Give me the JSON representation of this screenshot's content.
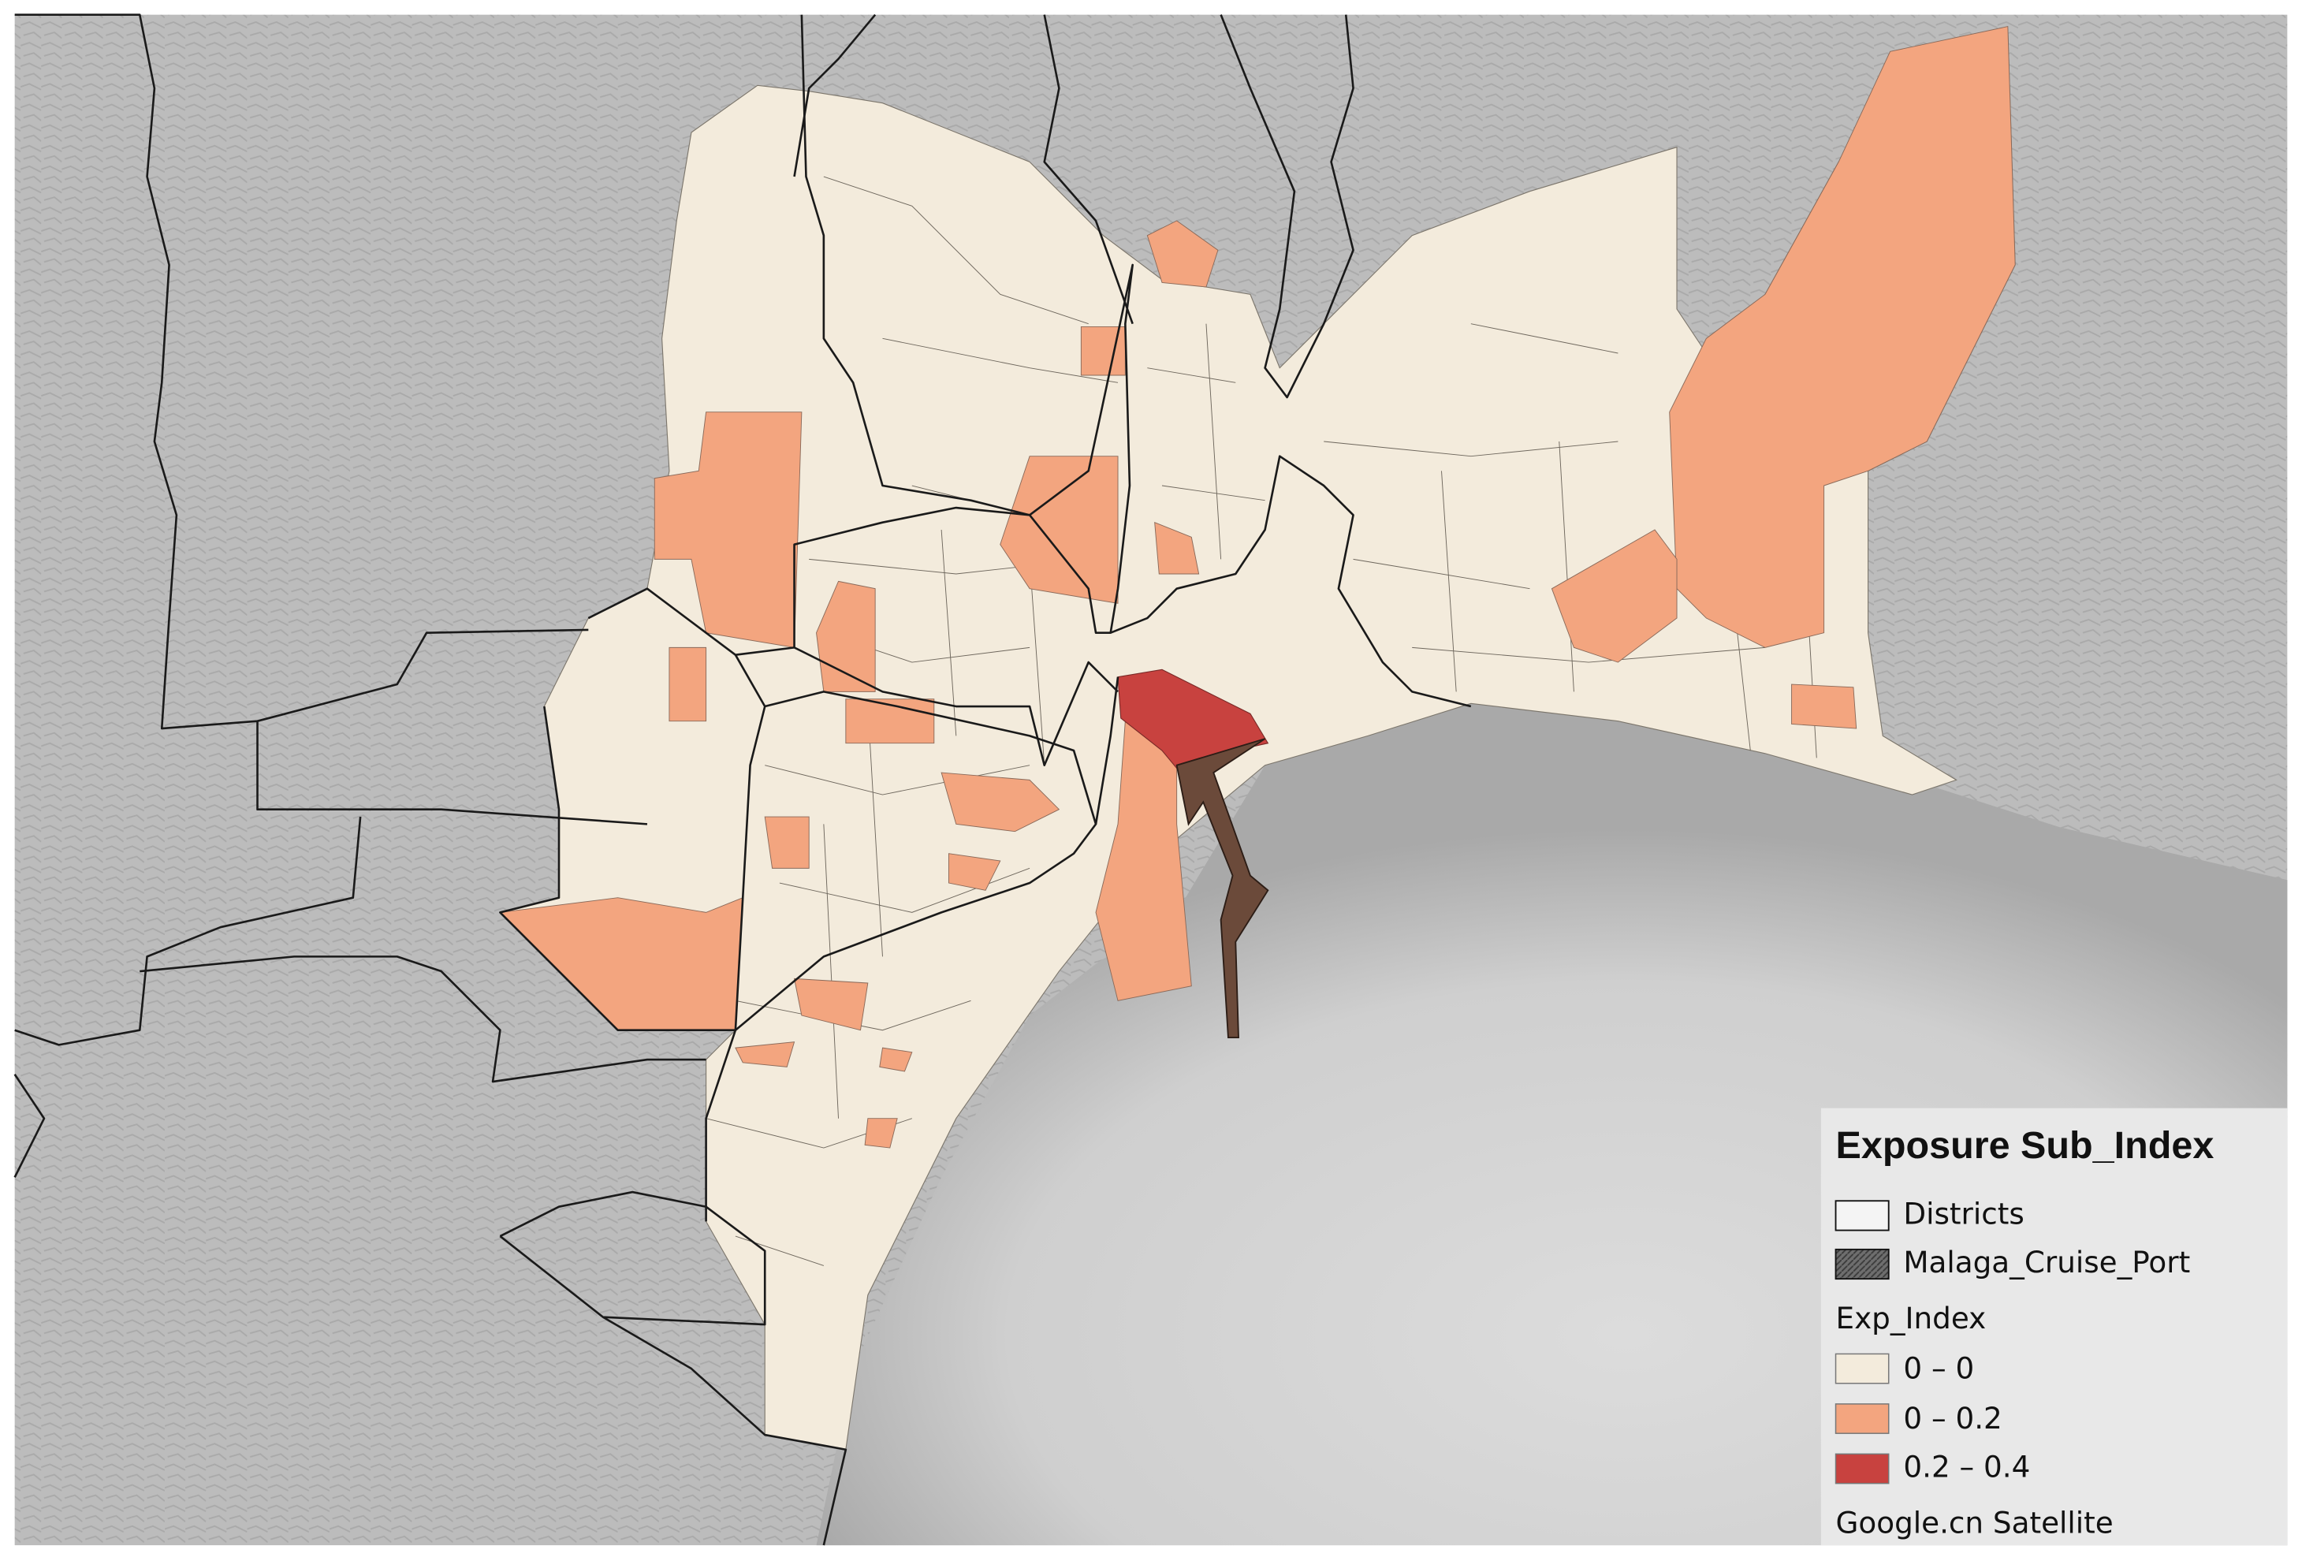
{
  "legend": {
    "title": "Exposure Sub_Index",
    "layers": [
      "Districts",
      "Malaga_Cruise_Port"
    ],
    "group": "Exp_Index",
    "classes": [
      "0 – 0",
      "0 – 0.2",
      "0.2 – 0.4"
    ],
    "basemap": "Google.cn Satellite"
  }
}
